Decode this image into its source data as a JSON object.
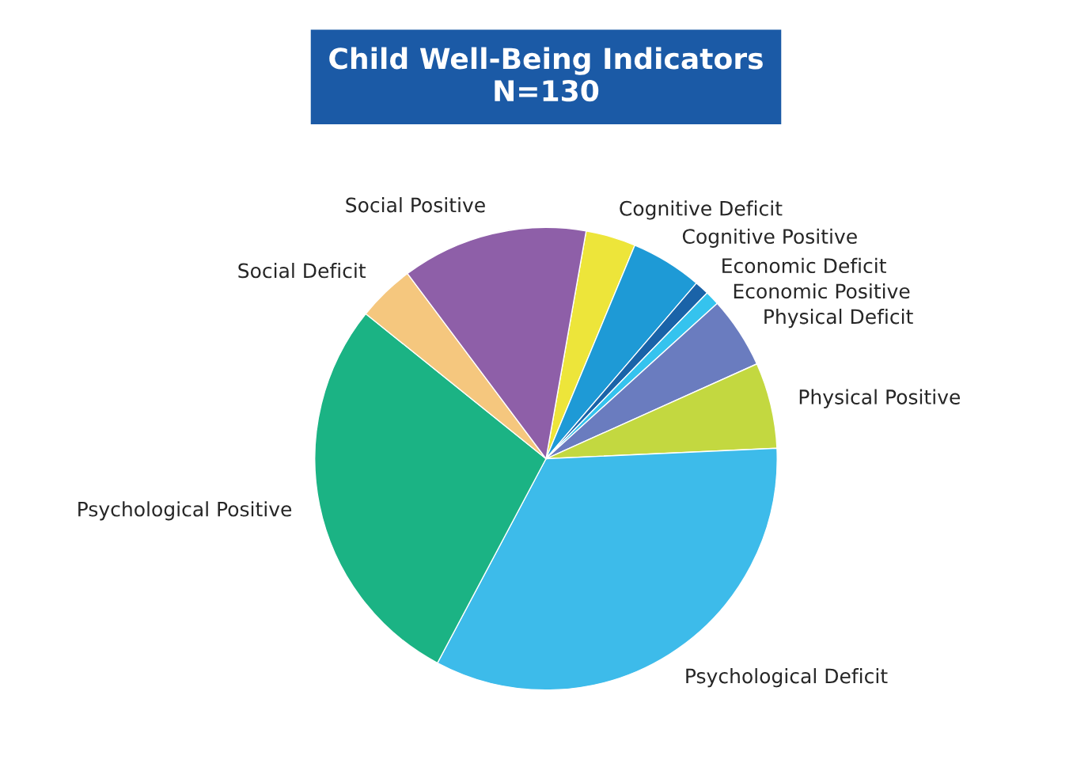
{
  "chart_data": {
    "type": "pie",
    "title": "Child Well-Being Indicators\nN=130",
    "categories": [
      "Cognitive Deficit",
      "Cognitive Positive",
      "Economic Deficit",
      "Economic Positive",
      "Physical Deficit",
      "Physical Positive",
      "Psychological Deficit",
      "Psychological Positive",
      "Social Deficit",
      "Social Positive"
    ],
    "values": [
      3.5,
      5,
      1,
      1,
      5,
      6,
      33.5,
      28,
      4,
      13
    ],
    "colors": [
      "#ede53a",
      "#1e9ad6",
      "#1a63a8",
      "#35c3ee",
      "#6a7cbf",
      "#c3d840",
      "#3dbbea",
      "#1bb384",
      "#f5c77e",
      "#8e5fa8"
    ],
    "legend": false
  }
}
